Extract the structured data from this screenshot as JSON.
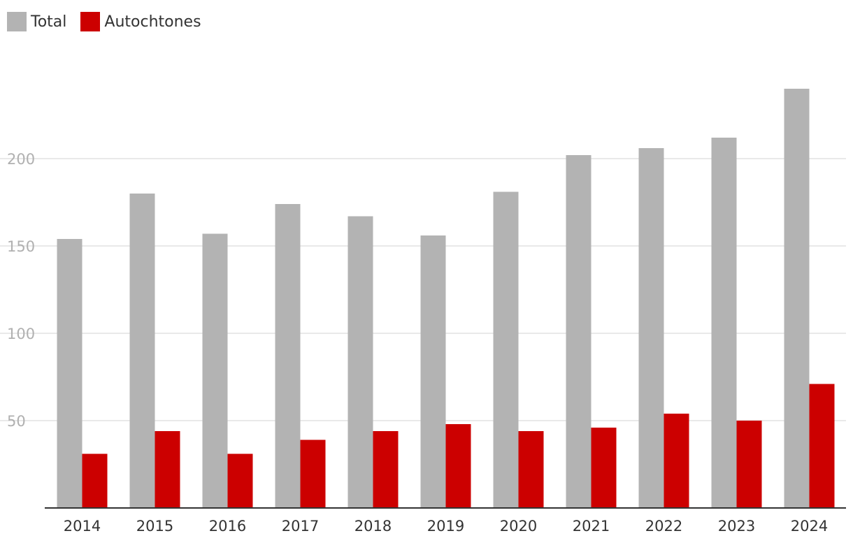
{
  "colors": {
    "total": "#b3b3b3",
    "autochtones": "#cc0000",
    "axis_text": "#333333",
    "ytick_text": "#b0b0b0",
    "grid": "#e2e2e2",
    "axis": "#333333"
  },
  "chart_data": {
    "type": "bar",
    "title": "",
    "xlabel": "",
    "ylabel": "",
    "categories": [
      "2014",
      "2015",
      "2016",
      "2017",
      "2018",
      "2019",
      "2020",
      "2021",
      "2022",
      "2023",
      "2024"
    ],
    "series": [
      {
        "name": "Total",
        "color": "#b3b3b3",
        "values": [
          154,
          180,
          157,
          174,
          167,
          156,
          181,
          202,
          206,
          212,
          240
        ]
      },
      {
        "name": "Autochtones",
        "color": "#cc0000",
        "values": [
          31,
          44,
          31,
          39,
          44,
          48,
          44,
          46,
          54,
          50,
          71
        ]
      }
    ],
    "ylim": [
      0,
      250
    ],
    "yticks": [
      50,
      100,
      150,
      200
    ],
    "grid": true,
    "legend": "top-left"
  }
}
